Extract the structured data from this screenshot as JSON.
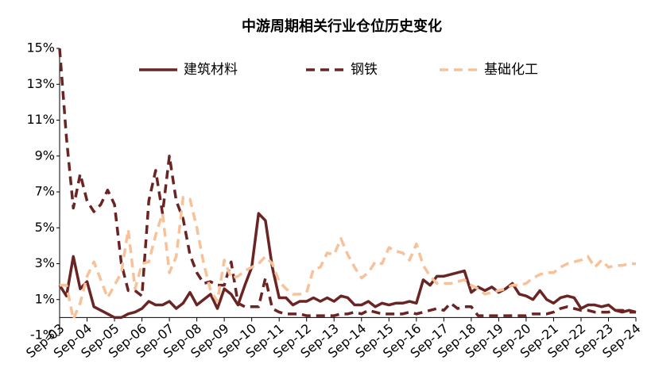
{
  "chart_data": {
    "type": "line",
    "title": "中游周期相关行业仓位历史变化",
    "categories": [
      "Sep-03",
      null,
      null,
      null,
      "Sep-04",
      null,
      null,
      null,
      "Sep-05",
      null,
      null,
      null,
      "Sep-06",
      null,
      null,
      null,
      "Sep-07",
      null,
      null,
      null,
      "Sep-08",
      null,
      null,
      null,
      "Sep-09",
      null,
      null,
      null,
      "Sep-10",
      null,
      null,
      null,
      "Sep-11",
      null,
      null,
      null,
      "Sep-12",
      null,
      null,
      null,
      "Sep-13",
      null,
      null,
      null,
      "Sep-14",
      null,
      null,
      null,
      "Sep-15",
      null,
      null,
      null,
      "Sep-16",
      null,
      null,
      null,
      "Sep-17",
      null,
      null,
      null,
      "Sep-18",
      null,
      null,
      null,
      "Sep-19",
      null,
      null,
      null,
      "Sep-20",
      null,
      null,
      null,
      "Sep-21",
      null,
      null,
      null,
      "Sep-22",
      null,
      null,
      null,
      "Sep-23",
      null,
      null,
      null,
      "Sep-24"
    ],
    "series": [
      {
        "name": "建筑材料",
        "color": "#6b2424",
        "style": "solid",
        "values": [
          1.8,
          1.2,
          3.4,
          1.6,
          2.0,
          0.6,
          0.4,
          0.2,
          0.0,
          0.0,
          0.2,
          0.3,
          0.5,
          0.9,
          0.7,
          0.7,
          0.9,
          0.5,
          0.8,
          1.4,
          0.7,
          1.0,
          1.3,
          0.5,
          1.6,
          1.3,
          0.7,
          1.8,
          2.8,
          5.8,
          5.4,
          2.8,
          1.1,
          1.1,
          0.7,
          0.9,
          0.9,
          1.1,
          0.9,
          1.1,
          0.9,
          1.2,
          1.1,
          0.7,
          0.7,
          0.9,
          0.6,
          0.8,
          0.7,
          0.8,
          0.8,
          0.9,
          0.8,
          2.1,
          1.8,
          2.3,
          2.3,
          2.4,
          2.5,
          2.6,
          1.4,
          1.7,
          1.5,
          1.7,
          1.4,
          1.6,
          1.9,
          1.3,
          1.2,
          1.0,
          1.5,
          1.0,
          0.8,
          1.1,
          1.2,
          1.1,
          0.5,
          0.7,
          0.7,
          0.6,
          0.7,
          0.4,
          0.3,
          0.4,
          0.3
        ]
      },
      {
        "name": "钢铁",
        "color": "#6b2424",
        "style": "dashed",
        "values": [
          15,
          10,
          6.1,
          8.0,
          6.5,
          5.9,
          6.3,
          7.1,
          6.3,
          3.0,
          1.5,
          1.5,
          1.2,
          6.5,
          8.2,
          5.8,
          9.0,
          6.5,
          5.5,
          3.5,
          2.5,
          1.9,
          2.0,
          1.8,
          1.8,
          3.1,
          0.8,
          0.6,
          0.6,
          0.6,
          2.2,
          0.5,
          0.3,
          0.2,
          0.2,
          0.2,
          0.1,
          0.1,
          0.1,
          0.1,
          0.1,
          0.2,
          0.2,
          0.3,
          0.2,
          0.4,
          0.3,
          0.2,
          0.2,
          0.2,
          0.2,
          0.3,
          0.2,
          0.3,
          0.4,
          0.5,
          0.4,
          0.8,
          0.5,
          0.6,
          0.6,
          0.1,
          0.1,
          0.1,
          0.1,
          0.1,
          0.1,
          0.1,
          0.1,
          0.2,
          0.2,
          0.2,
          0.3,
          0.5,
          0.6,
          0.5,
          0.4,
          0.4,
          0.3,
          0.3,
          0.3,
          0.4,
          0.4,
          0.3,
          0.3
        ]
      },
      {
        "name": "基础化工",
        "color": "#f7c29a",
        "style": "dashed",
        "values": [
          1.8,
          1.8,
          -0.1,
          0.8,
          2.3,
          3.1,
          2.1,
          1.1,
          1.8,
          2.5,
          4.9,
          1.6,
          3.0,
          3.1,
          4.6,
          5.8,
          2.5,
          3.4,
          6.7,
          6.6,
          5.0,
          3.0,
          1.5,
          0.9,
          3.2,
          2.2,
          2.3,
          2.6,
          2.8,
          3.0,
          3.4,
          3.0,
          2.0,
          1.6,
          1.3,
          1.3,
          1.4,
          2.7,
          2.8,
          3.6,
          3.5,
          4.4,
          3.5,
          2.8,
          2.2,
          2.5,
          3.1,
          3.0,
          3.9,
          3.7,
          3.6,
          3.2,
          4.1,
          2.9,
          2.3,
          1.9,
          1.9,
          1.9,
          2.0,
          2.1,
          1.8,
          1.6,
          1.3,
          1.4,
          1.5,
          1.6,
          1.8,
          1.8,
          1.9,
          2.2,
          2.4,
          2.5,
          2.5,
          2.8,
          3.0,
          3.1,
          3.2,
          3.4,
          2.8,
          3.2,
          2.8,
          2.9,
          2.9,
          3.0,
          3.0
        ]
      }
    ],
    "ylim": [
      -1,
      15
    ],
    "yticks": [
      {
        "value": -1,
        "label": "-1%"
      },
      {
        "value": 1,
        "label": "1%"
      },
      {
        "value": 3,
        "label": "3%"
      },
      {
        "value": 5,
        "label": "5%"
      },
      {
        "value": 7,
        "label": "7%"
      },
      {
        "value": 9,
        "label": "9%"
      },
      {
        "value": 11,
        "label": "11%"
      },
      {
        "value": 13,
        "label": "13%"
      },
      {
        "value": 15,
        "label": "15%"
      }
    ],
    "grid": false,
    "legend": "top"
  }
}
